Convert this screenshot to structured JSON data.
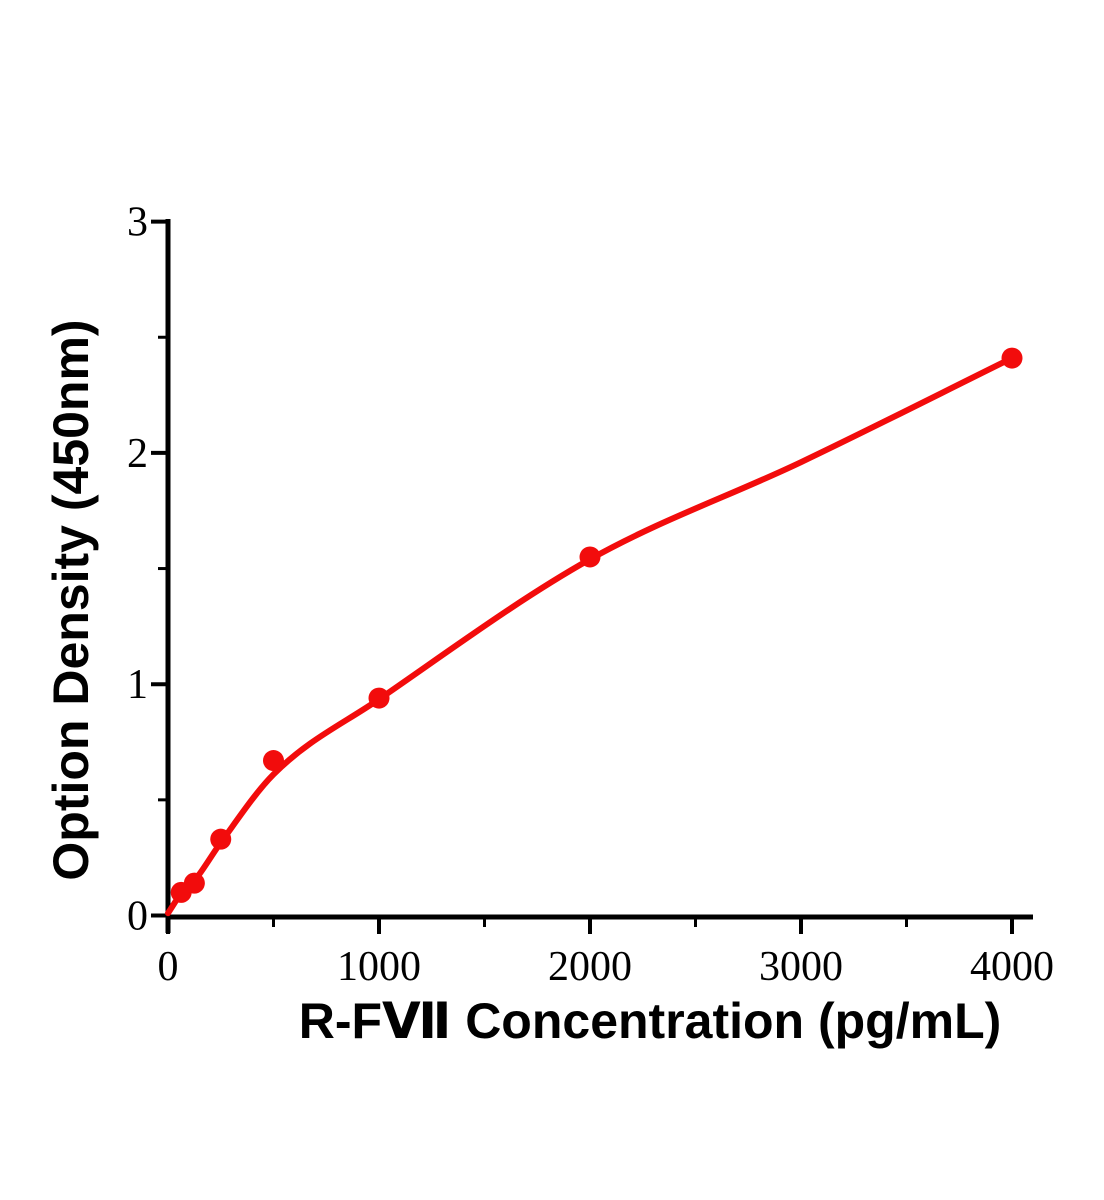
{
  "chart_data": {
    "type": "scatter",
    "title": "",
    "xlabel": "R-FⅦ Concentration (pg/mL)",
    "ylabel": "Option Density (450nm)",
    "xlim": [
      0,
      4100
    ],
    "ylim": [
      0,
      3.02
    ],
    "x_ticks": [
      0,
      1000,
      2000,
      3000,
      4000
    ],
    "x_minor_ticks": [
      500,
      1500,
      2500,
      3500
    ],
    "y_ticks": [
      0,
      1,
      2,
      3
    ],
    "y_minor_ticks": [
      0.5,
      1.5,
      2.5
    ],
    "grid": false,
    "legend": false,
    "axis_color": "#000000",
    "series": [
      {
        "name": "standard_curve",
        "color": "#f20c0c",
        "marker": "circle",
        "points": [
          {
            "x": 62.5,
            "y": 0.1
          },
          {
            "x": 125,
            "y": 0.14
          },
          {
            "x": 250,
            "y": 0.33
          },
          {
            "x": 500,
            "y": 0.67
          },
          {
            "x": 1000,
            "y": 0.94
          },
          {
            "x": 2000,
            "y": 1.55
          },
          {
            "x": 4000,
            "y": 2.41
          }
        ],
        "curve_points": [
          {
            "x": 0,
            "y": 0.01
          },
          {
            "x": 62.5,
            "y": 0.095
          },
          {
            "x": 125,
            "y": 0.15
          },
          {
            "x": 250,
            "y": 0.315
          },
          {
            "x": 500,
            "y": 0.61
          },
          {
            "x": 1000,
            "y": 0.935
          },
          {
            "x": 2000,
            "y": 1.54
          },
          {
            "x": 3000,
            "y": 1.96
          },
          {
            "x": 4000,
            "y": 2.41
          }
        ]
      }
    ]
  }
}
